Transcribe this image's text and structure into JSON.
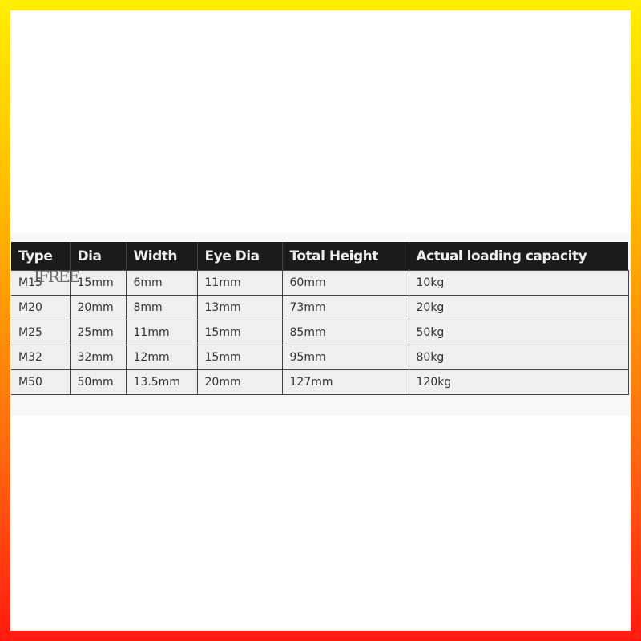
{
  "frame": {
    "gradient_colors": [
      "#ffee00",
      "#ffb400",
      "#ff6a10",
      "#ff1a10"
    ]
  },
  "watermark": "IFREE",
  "table": {
    "headers": [
      "Type",
      "Dia",
      "Width",
      "Eye Dia",
      "Total Height",
      "Actual loading capacity"
    ],
    "rows": [
      [
        "M15",
        "15mm",
        "6mm",
        "11mm",
        "60mm",
        "10kg"
      ],
      [
        "M20",
        "20mm",
        "8mm",
        "13mm",
        "73mm",
        "20kg"
      ],
      [
        "M25",
        "25mm",
        "11mm",
        "15mm",
        "85mm",
        "50kg"
      ],
      [
        "M32",
        "32mm",
        "12mm",
        "15mm",
        "95mm",
        "80kg"
      ],
      [
        "M50",
        "50mm",
        "13.5mm",
        "20mm",
        "127mm",
        "120kg"
      ]
    ]
  }
}
